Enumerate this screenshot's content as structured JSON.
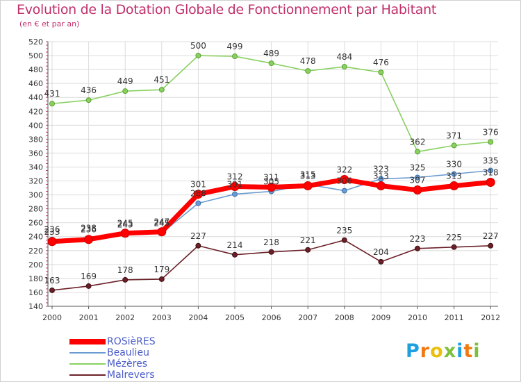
{
  "title": "Evolution de la Dotation Globale de Fonctionnement par Habitant",
  "subtitle": "(en € et par an)",
  "logo": {
    "text": "Proxiti",
    "letters": [
      "P",
      "r",
      "o",
      "x",
      "i",
      "t",
      "i"
    ],
    "colors": [
      "#1e9fe0",
      "#f07a10",
      "#e8c010",
      "#7dc03c",
      "#1e9fe0",
      "#f07a10",
      "#7dc03c"
    ]
  },
  "chart_data": {
    "type": "line",
    "title": "Evolution de la Dotation Globale de Fonctionnement par Habitant",
    "subtitle": "(en € et par an)",
    "xlabel": "",
    "ylabel": "",
    "ylim": [
      140,
      520
    ],
    "yticks": [
      140,
      160,
      180,
      200,
      220,
      240,
      260,
      280,
      300,
      320,
      340,
      360,
      380,
      400,
      420,
      440,
      460,
      480,
      500,
      520
    ],
    "categories": [
      "2000",
      "2001",
      "2002",
      "2003",
      "2004",
      "2005",
      "2006",
      "2007",
      "2008",
      "2009",
      "2010",
      "2011",
      "2012"
    ],
    "grid": true,
    "legend_position": "bottom-left",
    "series": [
      {
        "name": "ROSièRES",
        "color": "#ff0000",
        "values": [
          233,
          236,
          245,
          247,
          301,
          312,
          311,
          313,
          322,
          313,
          307,
          313,
          318
        ]
      },
      {
        "name": "Beaulieu",
        "color": "#6a9bd0",
        "values": [
          236,
          238,
          243,
          245,
          288,
          301,
          305,
          315,
          306,
          323,
          325,
          330,
          335
        ]
      },
      {
        "name": "Mézères",
        "color": "#88d060",
        "values": [
          431,
          436,
          449,
          451,
          500,
          499,
          489,
          478,
          484,
          476,
          362,
          371,
          376
        ]
      },
      {
        "name": "Malrevers",
        "color": "#6b2028",
        "values": [
          163,
          169,
          178,
          179,
          227,
          214,
          218,
          221,
          235,
          204,
          223,
          225,
          227
        ]
      }
    ]
  }
}
